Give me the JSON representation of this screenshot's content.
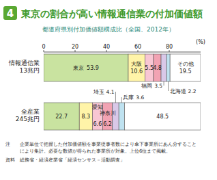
{
  "chart_data": {
    "type": "bar",
    "orientation": "horizontal",
    "stacked": true,
    "data_labels": true,
    "grid": false,
    "badge": "4",
    "title": "東京の割合が高い情報通信業の付加価値額",
    "subtitle": "都道府県別付加価値額構成比（全国、2012年）",
    "x_label": "(%)",
    "xlim": [
      0,
      100
    ],
    "xticks": [
      0,
      20,
      40,
      60,
      80
    ],
    "categories": [
      "情報通信業\n13兆円",
      "全産業\n245兆円"
    ],
    "series": [
      {
        "color": "#c9e3a0",
        "values": [
          53.9,
          22.7
        ],
        "labels": [
          "東京",
          null
        ]
      },
      {
        "color": "#fff4a8",
        "values": [
          10.6,
          8.3
        ],
        "labels": [
          "大阪",
          null
        ]
      },
      {
        "color": "#f8c6d3",
        "values": [
          5.5,
          6.6
        ],
        "labels": [
          null,
          "愛知"
        ]
      },
      {
        "color": "#f2a3b3",
        "values": [
          4.8,
          6.2
        ],
        "labels": [
          null,
          "神奈川"
        ]
      },
      {
        "color": "#d9c8e8",
        "values": [
          3.5,
          4.1
        ],
        "labels": [
          "福岡",
          "埼玉"
        ]
      },
      {
        "color": "#bfe2f0",
        "values": [
          2.2,
          3.6
        ],
        "labels": [
          "北海道",
          "兵庫"
        ]
      },
      {
        "color": "#ffffff",
        "values": [
          19.5,
          48.5
        ],
        "labels": [
          "その他",
          null
        ]
      }
    ],
    "notes": [
      {
        "label": "注",
        "lines": [
          "企業単位で把握した付加価値額を事業従事者数により傘下事業所にあん分すること",
          "により集計。必要な数値が得られた事業所が対象。上位6位まで掲載。"
        ]
      },
      {
        "label": "資料",
        "lines": [
          "総務省・経済産業省「経済センサス－活動調査」"
        ]
      }
    ]
  }
}
